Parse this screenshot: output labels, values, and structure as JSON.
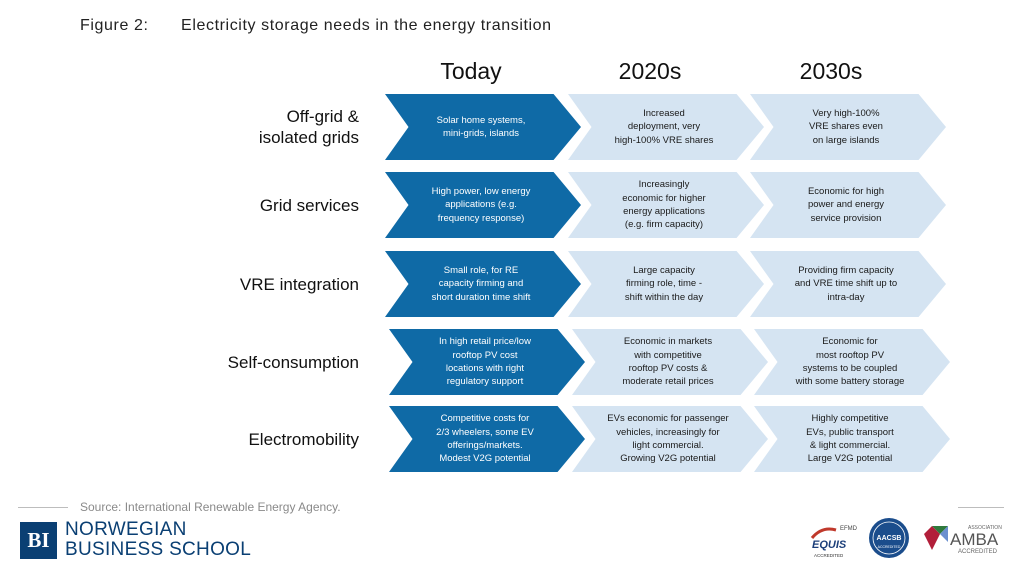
{
  "figure": {
    "number": "Figure 2:",
    "title": "Electricity storage needs in the energy transition"
  },
  "columns": [
    "Today",
    "2020s",
    "2030s"
  ],
  "rows": [
    {
      "label": "Off-grid &\nisolated grids",
      "cells": [
        "Solar home systems,\nmini-grids, islands",
        "Increased\ndeployment, very\nhigh-100% VRE shares",
        "Very high-100%\nVRE shares even\non large islands"
      ]
    },
    {
      "label": "Grid services",
      "cells": [
        "High power, low energy\napplications (e.g.\nfrequency response)",
        "Increasingly\neconomic for higher\nenergy applications\n(e.g. firm capacity)",
        "Economic for high\npower and energy\nservice provision"
      ]
    },
    {
      "label": "VRE integration",
      "cells": [
        "Small role, for RE\ncapacity firming and\nshort duration time shift",
        "Large capacity\nfirming role, time -\nshift within the day",
        "Providing firm capacity\nand VRE time shift up to\nintra-day"
      ]
    },
    {
      "label": "Self-consumption",
      "cells": [
        "In high retail price/low\nrooftop PV cost\nlocations with right\nregulatory support",
        "Economic in markets\nwith competitive\nrooftop PV costs &\nmoderate retail prices",
        "Economic for\nmost rooftop PV\nsystems to be coupled\nwith some battery storage"
      ]
    },
    {
      "label": "Electromobility",
      "cells": [
        "Competitive costs for\n2/3 wheelers, some EV\nofferings/markets.\nModest V2G potential",
        "EVs economic for passenger\nvehicles, increasingly for\nlight commercial.\nGrowing V2G potential",
        "Highly competitive\nEVs, public transport\n& light commercial.\nLarge V2G potential"
      ]
    }
  ],
  "source": "Source: International Renewable Energy Agency.",
  "footer": {
    "logo_text": "BI",
    "school_line1": "NORWEGIAN",
    "school_line2": "BUSINESS SCHOOL",
    "accreditations": {
      "efmd": "EFMD",
      "equis": "EQUIS",
      "equis_sub": "ACCREDITED",
      "aacsb": "AACSB",
      "aacsb_sub": "ACCREDITED",
      "amba_top": "ASSOCIATION",
      "amba": "AMBA",
      "amba_sub": "ACCREDITED"
    }
  },
  "colors": {
    "today": "#0f6aa6",
    "future": "#d5e4f2",
    "brand": "#0a3f73"
  }
}
